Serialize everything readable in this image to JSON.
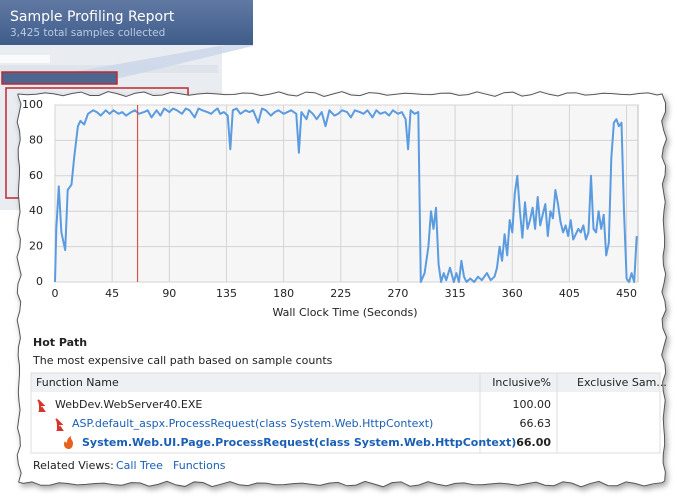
{
  "header": {
    "title": "Sample Profiling Report",
    "subtitle": "3,425 total samples collected"
  },
  "chart_data": {
    "type": "line",
    "x_label": "Wall Clock Time (Seconds)",
    "x": [
      0,
      1,
      3,
      5,
      8,
      10,
      13,
      15,
      18,
      20,
      23,
      26,
      30,
      33,
      36,
      40,
      43,
      46,
      50,
      53,
      56,
      60,
      63,
      66,
      70,
      73,
      76,
      80,
      83,
      86,
      90,
      93,
      96,
      100,
      103,
      106,
      110,
      113,
      116,
      120,
      123,
      126,
      128,
      130,
      133,
      136,
      138,
      140,
      143,
      146,
      150,
      153,
      156,
      160,
      163,
      166,
      170,
      173,
      176,
      180,
      183,
      186,
      190,
      192,
      194,
      198,
      200,
      203,
      206,
      210,
      213,
      216,
      220,
      223,
      226,
      230,
      233,
      236,
      240,
      243,
      246,
      250,
      253,
      256,
      260,
      263,
      266,
      270,
      273,
      276,
      278,
      280,
      283,
      286,
      288,
      291,
      294,
      296,
      298,
      300,
      302,
      304,
      306,
      308,
      311,
      314,
      316,
      318,
      320,
      322,
      324,
      327,
      330,
      333,
      336,
      340,
      343,
      346,
      348,
      350,
      352,
      354,
      356,
      358,
      360,
      362,
      364,
      366,
      368,
      370,
      372,
      374,
      376,
      378,
      380,
      382,
      384,
      386,
      388,
      390,
      392,
      394,
      396,
      398,
      400,
      402,
      404,
      406,
      408,
      410,
      412,
      414,
      416,
      418,
      420,
      422,
      424,
      426,
      428,
      430,
      432,
      434,
      436,
      438,
      440,
      442,
      444,
      446,
      448,
      450,
      452,
      454,
      456,
      458
    ],
    "values": [
      0,
      30,
      54,
      28,
      18,
      52,
      55,
      70,
      88,
      91,
      89,
      95,
      97,
      96,
      94,
      97,
      95,
      97,
      95,
      96,
      94,
      96,
      97,
      95,
      96,
      97,
      93,
      97,
      94,
      98,
      96,
      98,
      97,
      95,
      98,
      97,
      93,
      98,
      97,
      96,
      95,
      97,
      98,
      95,
      96,
      94,
      75,
      97,
      98,
      95,
      97,
      96,
      97,
      90,
      98,
      97,
      94,
      96,
      97,
      95,
      96,
      97,
      95,
      73,
      96,
      92,
      97,
      95,
      92,
      96,
      88,
      97,
      94,
      95,
      97,
      96,
      93,
      97,
      96,
      95,
      97,
      93,
      97,
      95,
      96,
      94,
      97,
      95,
      96,
      92,
      75,
      97,
      95,
      96,
      0,
      5,
      20,
      40,
      30,
      42,
      10,
      0,
      5,
      1,
      8,
      0,
      5,
      0,
      12,
      3,
      0,
      2,
      0,
      3,
      1,
      5,
      1,
      3,
      8,
      20,
      12,
      27,
      15,
      35,
      28,
      50,
      60,
      40,
      25,
      45,
      30,
      35,
      42,
      30,
      48,
      32,
      38,
      44,
      26,
      40,
      36,
      52,
      44,
      34,
      28,
      32,
      26,
      35,
      24,
      27,
      30,
      28,
      32,
      24,
      28,
      60,
      30,
      28,
      40,
      30,
      38,
      15,
      22,
      70,
      90,
      92,
      88,
      90,
      40,
      2,
      0,
      5,
      0,
      26
    ],
    "line_color": "#5b9be0",
    "selection_x": 65,
    "selection_color": "#d9534f",
    "xlim": [
      0,
      459
    ],
    "ylim": [
      0,
      100
    ],
    "xticks": [
      0,
      45,
      90,
      135,
      180,
      225,
      270,
      315,
      360,
      405,
      450
    ],
    "yticks": [
      0,
      20,
      40,
      60,
      80,
      100
    ],
    "grid": true
  },
  "hot_path": {
    "title": "Hot Path",
    "description": "The most expensive call path based on sample counts",
    "columns": [
      "Function Name",
      "Inclusive%",
      "Exclusive Sam..."
    ],
    "rows": [
      {
        "function": "WebDev.WebServer40.EXE",
        "inclusive": "100.00"
      },
      {
        "function": "ASP.default_aspx.ProcessRequest(class System.Web.HttpContext)",
        "inclusive": "66.63"
      },
      {
        "function": "System.Web.UI.Page.ProcessRequest(class System.Web.HttpContext)",
        "inclusive": "66.00"
      }
    ]
  },
  "related_views": {
    "label": "Related Views:",
    "links": [
      "Call Tree",
      "Functions"
    ]
  }
}
